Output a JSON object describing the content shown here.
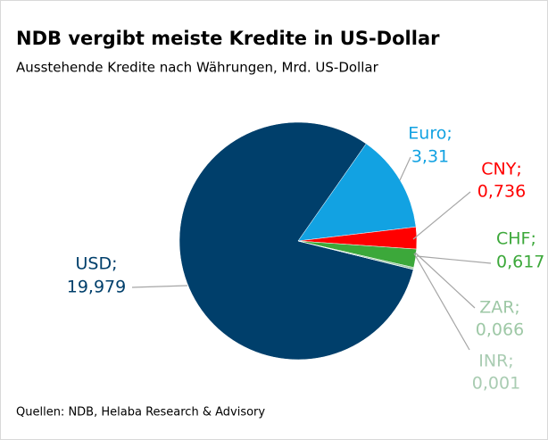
{
  "chart_data": {
    "type": "pie",
    "title": "NDB vergibt meiste Kredite in US-Dollar",
    "subtitle": "Ausstehende Kredite nach Währungen, Mrd. US-Dollar",
    "source": "Quellen: NDB, Helaba Research & Advisory",
    "categories": [
      "USD;",
      "Euro;",
      "CNY;",
      "CHF;",
      "ZAR;",
      "INR;"
    ],
    "values": [
      19.979,
      3.31,
      0.736,
      0.617,
      0.066,
      0.001
    ],
    "value_labels": [
      "19,979",
      "3,31",
      "0,736",
      "0,617",
      "0,066",
      "0,001"
    ],
    "colors": [
      "#003f6b",
      "#12a2e2",
      "#ff0000",
      "#3ca83a",
      "#9ec8a6",
      "#a9ccb2"
    ]
  }
}
